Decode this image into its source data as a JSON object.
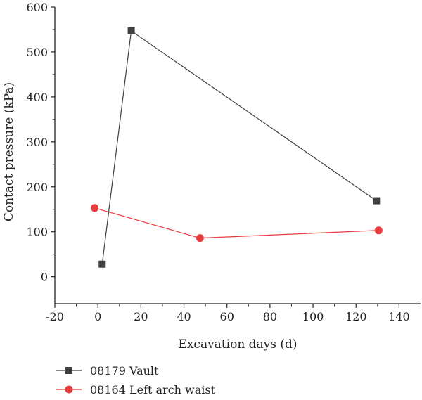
{
  "chart_data": {
    "type": "line",
    "xlabel": "Excavation days (d)",
    "ylabel": "Contact pressure (kPa)",
    "xlim": [
      -20,
      150
    ],
    "ylim": [
      -60,
      600
    ],
    "x_ticks": [
      -20,
      0,
      20,
      40,
      60,
      80,
      100,
      120,
      140
    ],
    "y_ticks": [
      0,
      100,
      200,
      300,
      400,
      500,
      600
    ],
    "grid": false,
    "legend_position": "bottom-left, below plot",
    "series": [
      {
        "name": "08179 Vault",
        "color": "#404040",
        "marker": "square",
        "points": [
          {
            "x": 2,
            "y": 28
          },
          {
            "x": 15.5,
            "y": 547
          },
          {
            "x": 129.5,
            "y": 169
          }
        ]
      },
      {
        "name": "08164 Left arch waist",
        "color": "#e8393d",
        "marker": "circle",
        "points": [
          {
            "x": -1.5,
            "y": 153
          },
          {
            "x": 47.5,
            "y": 86
          },
          {
            "x": 130.5,
            "y": 103
          }
        ]
      }
    ]
  }
}
